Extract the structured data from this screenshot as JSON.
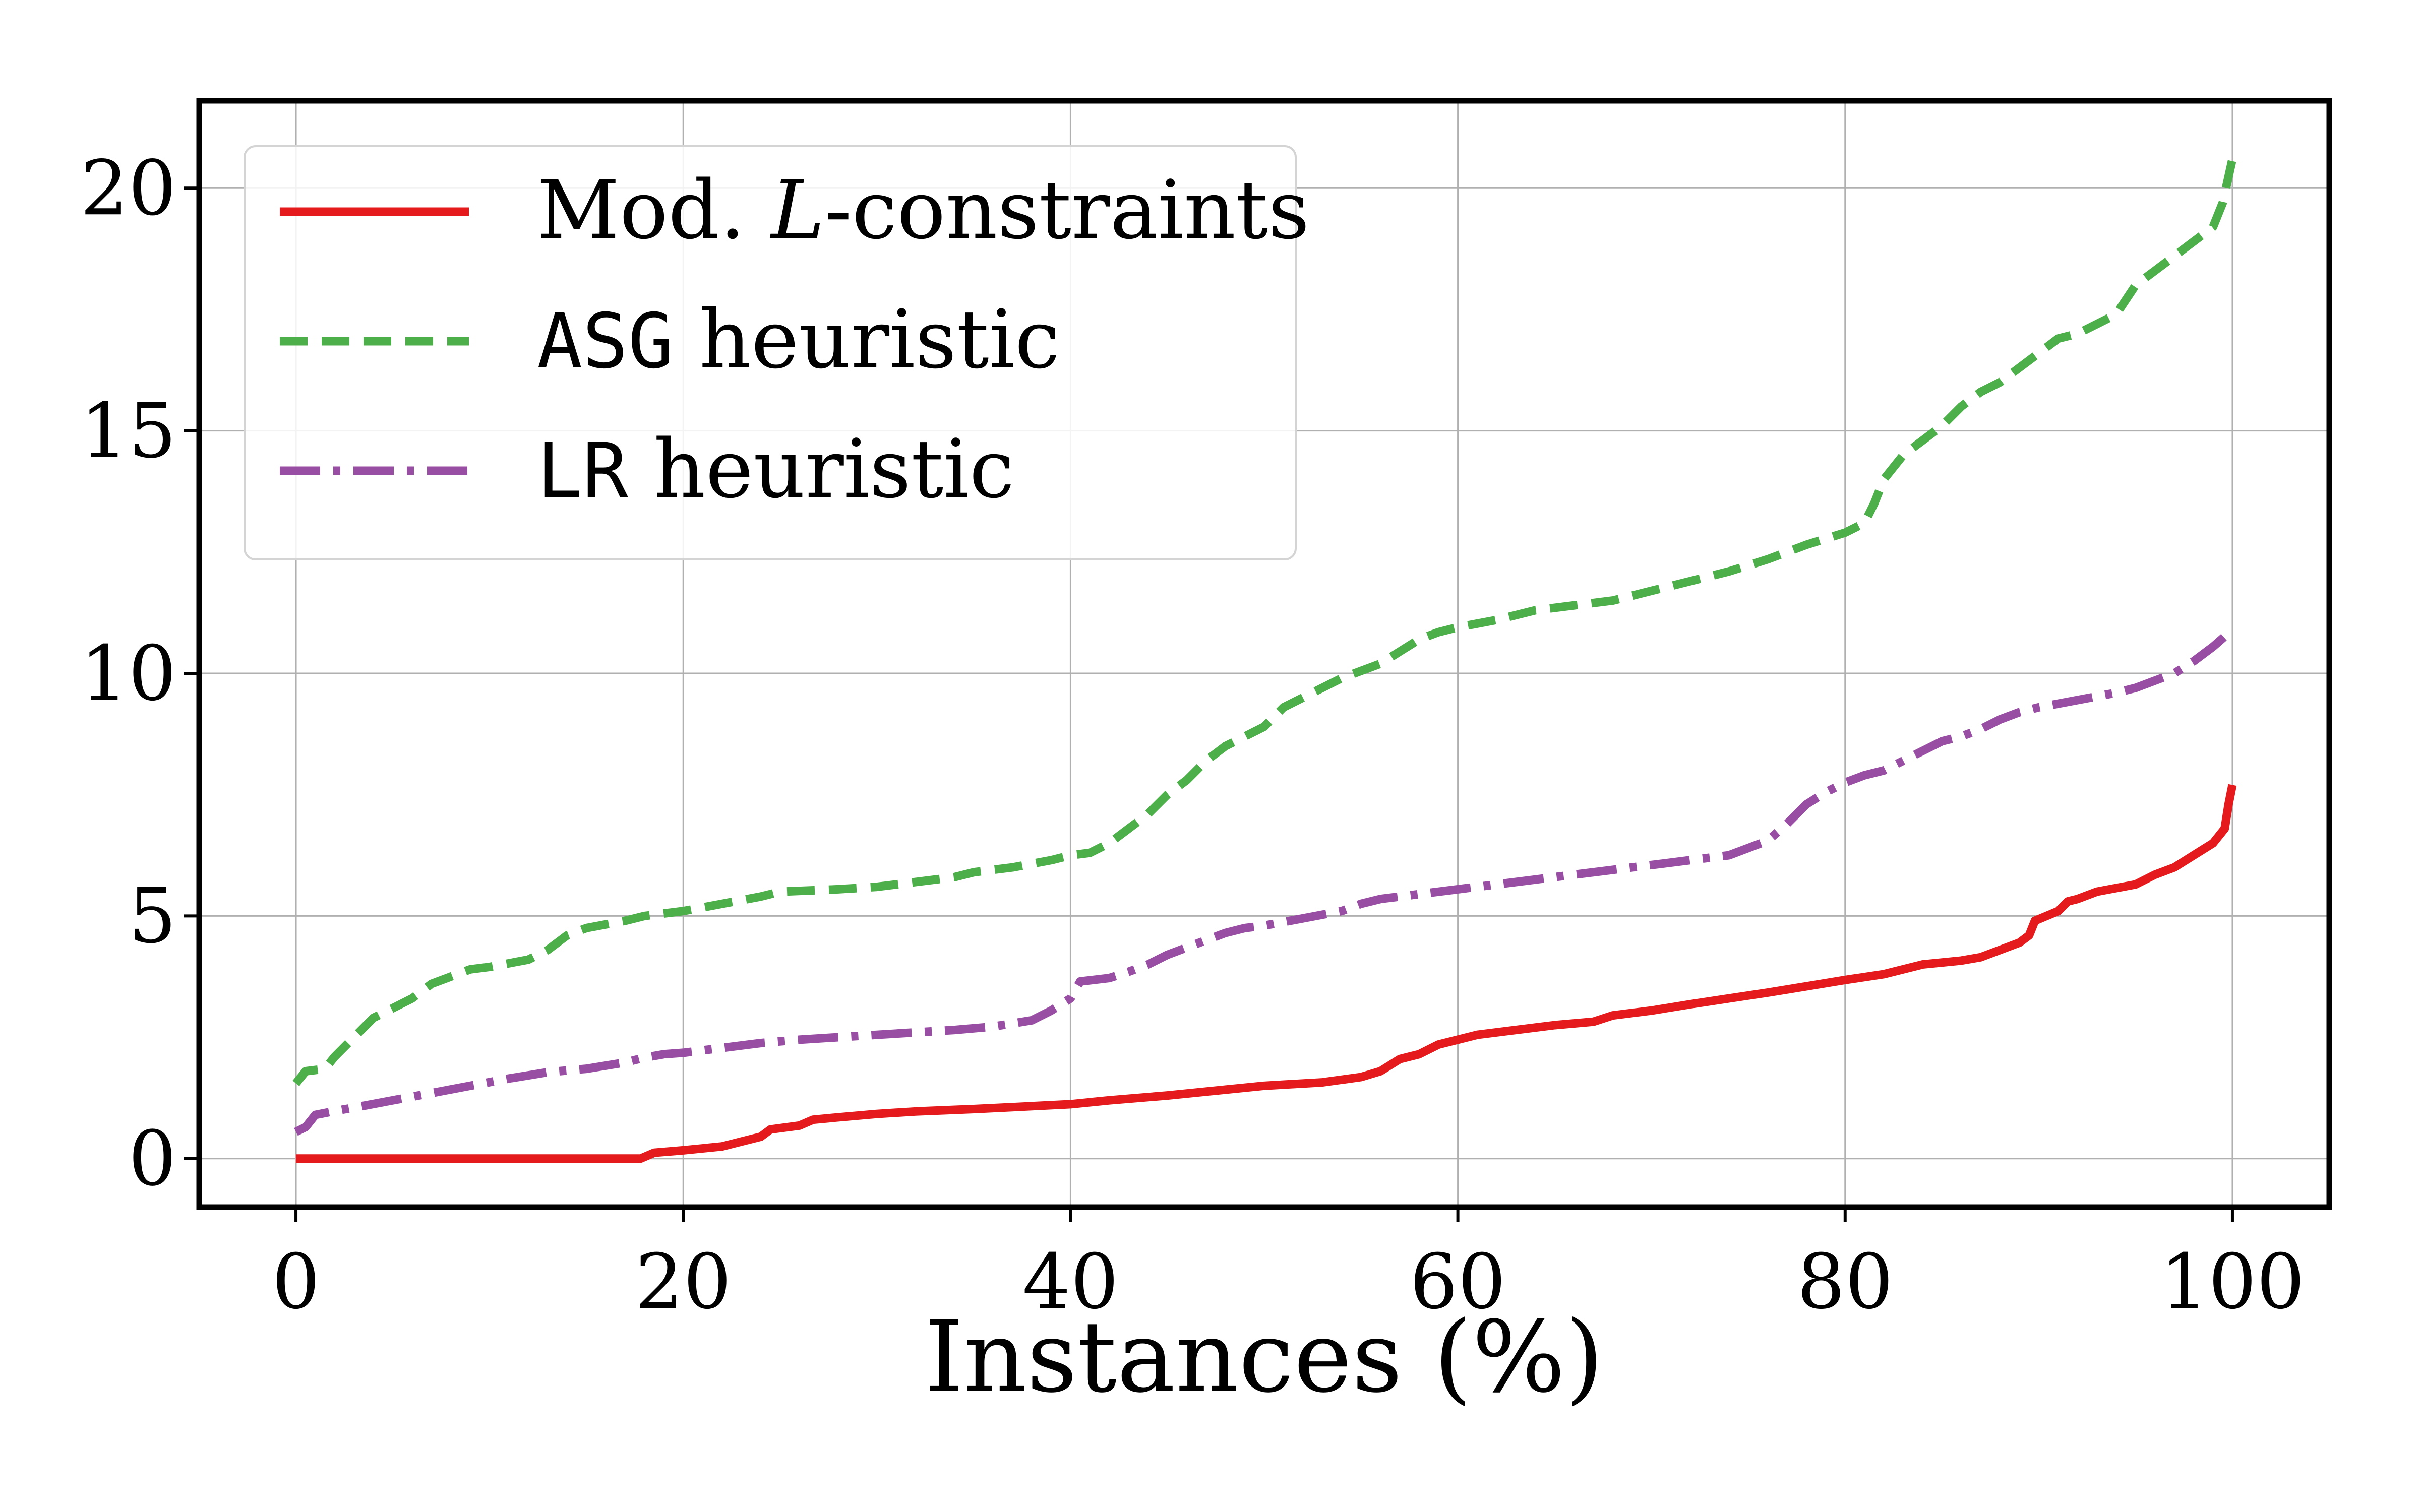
{
  "chart_data": {
    "type": "line",
    "title": "",
    "xlabel": "Instances (%)",
    "ylabel": "",
    "xlim": [
      -5,
      105
    ],
    "ylim": [
      -1,
      21.8
    ],
    "xticks": [
      0,
      20,
      40,
      60,
      80,
      100
    ],
    "xtick_labels": [
      "0",
      "20",
      "40",
      "60",
      "80",
      "100"
    ],
    "yticks": [
      0,
      5,
      10,
      15,
      20
    ],
    "ytick_labels": [
      "0",
      "5",
      "10",
      "15",
      "20"
    ],
    "grid": true,
    "legend_position": "top-left",
    "legend": [
      {
        "prefix": "Mod. ",
        "italic": "L",
        "suffix": "-constraints",
        "mono": "",
        "rest": ""
      },
      {
        "prefix": "",
        "italic": "",
        "suffix": "",
        "mono": "ASG",
        "rest": " heuristic"
      },
      {
        "prefix": "",
        "italic": "",
        "suffix": "",
        "mono": "LR",
        "rest": " heuristic"
      }
    ],
    "series": [
      {
        "name": "Mod. L-constraints",
        "color": "#e41a1c",
        "dash": "solid",
        "points": [
          [
            0,
            0
          ],
          [
            10,
            0
          ],
          [
            17.8,
            0
          ],
          [
            18.5,
            0.12
          ],
          [
            20,
            0.17
          ],
          [
            22,
            0.25
          ],
          [
            23,
            0.35
          ],
          [
            24,
            0.45
          ],
          [
            24.5,
            0.6
          ],
          [
            26,
            0.68
          ],
          [
            26.7,
            0.8
          ],
          [
            28,
            0.85
          ],
          [
            30,
            0.92
          ],
          [
            32,
            0.97
          ],
          [
            35,
            1.02
          ],
          [
            38,
            1.08
          ],
          [
            40,
            1.12
          ],
          [
            42,
            1.2
          ],
          [
            45,
            1.3
          ],
          [
            48,
            1.42
          ],
          [
            50,
            1.5
          ],
          [
            53,
            1.57
          ],
          [
            55,
            1.68
          ],
          [
            56,
            1.8
          ],
          [
            57,
            2.05
          ],
          [
            58,
            2.15
          ],
          [
            59,
            2.35
          ],
          [
            60,
            2.45
          ],
          [
            61,
            2.55
          ],
          [
            63,
            2.65
          ],
          [
            65,
            2.75
          ],
          [
            67,
            2.82
          ],
          [
            68,
            2.95
          ],
          [
            70,
            3.05
          ],
          [
            72,
            3.18
          ],
          [
            74,
            3.3
          ],
          [
            76,
            3.42
          ],
          [
            78,
            3.55
          ],
          [
            80,
            3.68
          ],
          [
            82,
            3.8
          ],
          [
            83,
            3.9
          ],
          [
            84,
            4.0
          ],
          [
            86,
            4.08
          ],
          [
            87,
            4.15
          ],
          [
            88,
            4.3
          ],
          [
            89,
            4.45
          ],
          [
            89.5,
            4.6
          ],
          [
            89.8,
            4.9
          ],
          [
            91,
            5.1
          ],
          [
            91.5,
            5.3
          ],
          [
            92,
            5.35
          ],
          [
            93,
            5.5
          ],
          [
            95,
            5.65
          ],
          [
            96,
            5.85
          ],
          [
            97,
            6.0
          ],
          [
            98,
            6.25
          ],
          [
            99,
            6.5
          ],
          [
            99.6,
            6.8
          ],
          [
            99.8,
            7.3
          ],
          [
            100,
            7.7
          ]
        ]
      },
      {
        "name": "ASG heuristic",
        "color": "#4daf4a",
        "dash": "dashed",
        "points": [
          [
            0,
            1.55
          ],
          [
            0.5,
            1.8
          ],
          [
            1.5,
            1.85
          ],
          [
            2,
            2.1
          ],
          [
            3,
            2.5
          ],
          [
            4,
            2.9
          ],
          [
            5,
            3.1
          ],
          [
            6,
            3.3
          ],
          [
            7,
            3.6
          ],
          [
            8,
            3.75
          ],
          [
            9,
            3.9
          ],
          [
            10,
            3.95
          ],
          [
            12,
            4.1
          ],
          [
            13,
            4.3
          ],
          [
            14,
            4.6
          ],
          [
            15,
            4.75
          ],
          [
            17,
            4.9
          ],
          [
            18,
            5.0
          ],
          [
            20,
            5.1
          ],
          [
            22,
            5.25
          ],
          [
            24,
            5.4
          ],
          [
            25,
            5.5
          ],
          [
            28,
            5.55
          ],
          [
            30,
            5.6
          ],
          [
            32,
            5.7
          ],
          [
            34,
            5.8
          ],
          [
            35,
            5.9
          ],
          [
            37,
            6.0
          ],
          [
            39,
            6.15
          ],
          [
            40,
            6.25
          ],
          [
            41,
            6.3
          ],
          [
            42,
            6.5
          ],
          [
            43,
            6.8
          ],
          [
            44,
            7.1
          ],
          [
            45,
            7.5
          ],
          [
            46,
            7.8
          ],
          [
            47,
            8.2
          ],
          [
            48,
            8.5
          ],
          [
            49,
            8.7
          ],
          [
            50,
            8.9
          ],
          [
            51,
            9.3
          ],
          [
            52,
            9.5
          ],
          [
            53,
            9.7
          ],
          [
            54,
            9.9
          ],
          [
            55,
            10.05
          ],
          [
            56,
            10.2
          ],
          [
            57,
            10.45
          ],
          [
            58,
            10.7
          ],
          [
            59,
            10.85
          ],
          [
            60,
            10.95
          ],
          [
            62,
            11.1
          ],
          [
            64,
            11.3
          ],
          [
            66,
            11.4
          ],
          [
            68,
            11.5
          ],
          [
            70,
            11.7
          ],
          [
            72,
            11.9
          ],
          [
            74,
            12.1
          ],
          [
            76,
            12.35
          ],
          [
            78,
            12.65
          ],
          [
            80,
            12.9
          ],
          [
            81,
            13.1
          ],
          [
            81.5,
            13.5
          ],
          [
            82,
            14.0
          ],
          [
            83,
            14.5
          ],
          [
            84,
            14.8
          ],
          [
            85,
            15.1
          ],
          [
            86,
            15.5
          ],
          [
            87,
            15.8
          ],
          [
            88,
            16.0
          ],
          [
            89,
            16.3
          ],
          [
            90,
            16.6
          ],
          [
            91,
            16.9
          ],
          [
            92,
            17.0
          ],
          [
            93,
            17.2
          ],
          [
            94,
            17.4
          ],
          [
            94.5,
            17.7
          ],
          [
            95,
            18.0
          ],
          [
            96,
            18.3
          ],
          [
            97,
            18.6
          ],
          [
            98,
            18.9
          ],
          [
            99,
            19.2
          ],
          [
            99.5,
            19.7
          ],
          [
            100,
            20.6
          ]
        ]
      },
      {
        "name": "LR heuristic",
        "color": "#984ea3",
        "dash": "dashdot",
        "points": [
          [
            0,
            0.55
          ],
          [
            0.5,
            0.65
          ],
          [
            1,
            0.9
          ],
          [
            2,
            0.98
          ],
          [
            3,
            1.05
          ],
          [
            5,
            1.2
          ],
          [
            7,
            1.35
          ],
          [
            9,
            1.5
          ],
          [
            11,
            1.65
          ],
          [
            13,
            1.78
          ],
          [
            15,
            1.85
          ],
          [
            17,
            1.98
          ],
          [
            18,
            2.08
          ],
          [
            19,
            2.15
          ],
          [
            20,
            2.18
          ],
          [
            22,
            2.28
          ],
          [
            24,
            2.38
          ],
          [
            26,
            2.45
          ],
          [
            28,
            2.5
          ],
          [
            30,
            2.55
          ],
          [
            32,
            2.6
          ],
          [
            34,
            2.65
          ],
          [
            36,
            2.72
          ],
          [
            38,
            2.85
          ],
          [
            39,
            3.05
          ],
          [
            40,
            3.3
          ],
          [
            40.5,
            3.65
          ],
          [
            42,
            3.72
          ],
          [
            43,
            3.85
          ],
          [
            44,
            4.0
          ],
          [
            45,
            4.2
          ],
          [
            46,
            4.35
          ],
          [
            47,
            4.5
          ],
          [
            48,
            4.65
          ],
          [
            49,
            4.75
          ],
          [
            50,
            4.8
          ],
          [
            52,
            4.95
          ],
          [
            54,
            5.1
          ],
          [
            55,
            5.25
          ],
          [
            56,
            5.35
          ],
          [
            58,
            5.45
          ],
          [
            60,
            5.55
          ],
          [
            62,
            5.65
          ],
          [
            64,
            5.75
          ],
          [
            66,
            5.85
          ],
          [
            68,
            5.95
          ],
          [
            70,
            6.05
          ],
          [
            72,
            6.15
          ],
          [
            74,
            6.25
          ],
          [
            75,
            6.4
          ],
          [
            76,
            6.55
          ],
          [
            77,
            6.9
          ],
          [
            78,
            7.3
          ],
          [
            79,
            7.55
          ],
          [
            80,
            7.75
          ],
          [
            81,
            7.9
          ],
          [
            82,
            8.0
          ],
          [
            83,
            8.2
          ],
          [
            84,
            8.4
          ],
          [
            85,
            8.6
          ],
          [
            86,
            8.7
          ],
          [
            87,
            8.85
          ],
          [
            88,
            9.05
          ],
          [
            89,
            9.2
          ],
          [
            90,
            9.3
          ],
          [
            92,
            9.45
          ],
          [
            94,
            9.6
          ],
          [
            95,
            9.7
          ],
          [
            96,
            9.85
          ],
          [
            97,
            10.0
          ],
          [
            98,
            10.25
          ],
          [
            99,
            10.55
          ],
          [
            100,
            10.9
          ]
        ]
      }
    ]
  }
}
